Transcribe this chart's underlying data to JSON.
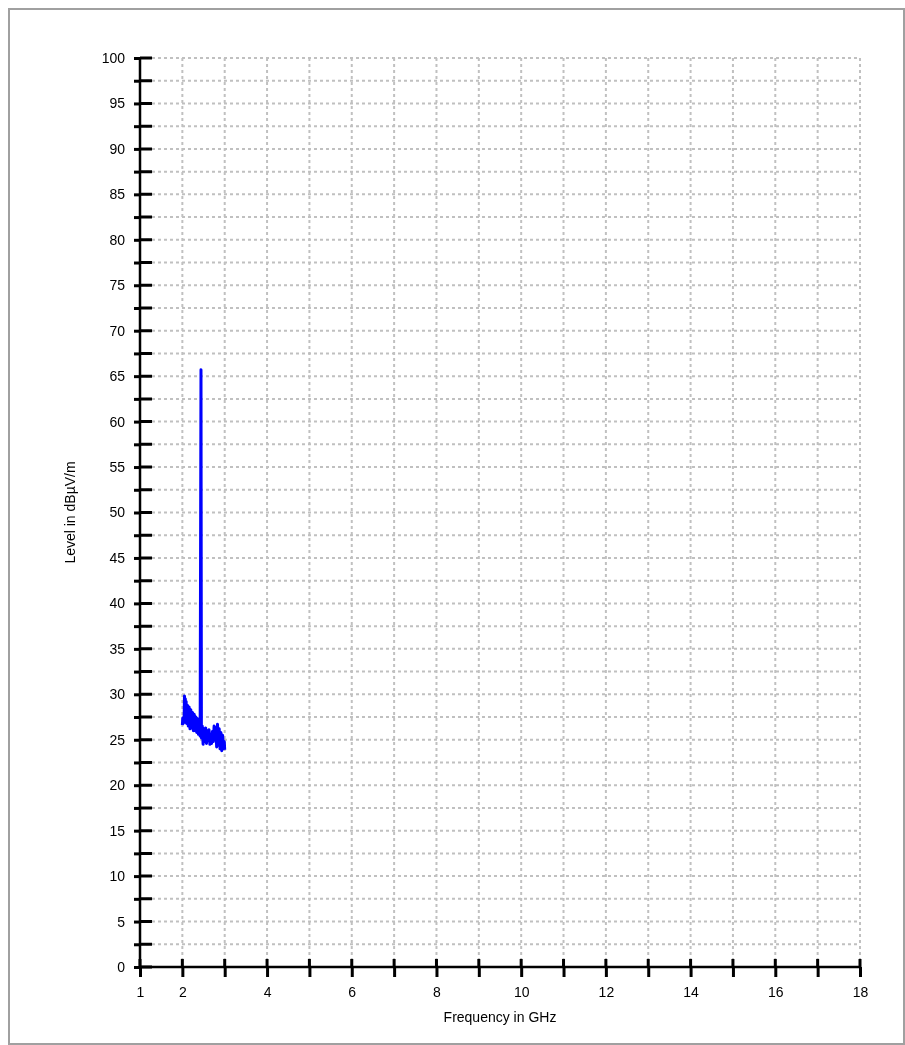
{
  "chart_data": {
    "type": "line",
    "xlabel": "Frequency in GHz",
    "ylabel": "Level in dBµV/m",
    "xlim": [
      1,
      18
    ],
    "xticks": [
      1,
      2,
      {
        "value": 3,
        "label": null
      },
      4,
      {
        "value": 5,
        "label": null
      },
      6,
      {
        "value": 7,
        "label": null
      },
      8,
      {
        "value": 9,
        "label": null
      },
      10,
      {
        "value": 11,
        "label": null
      },
      12,
      {
        "value": 13,
        "label": null
      },
      14,
      {
        "value": 15,
        "label": null
      },
      16,
      {
        "value": 17,
        "label": null
      },
      18
    ],
    "ylim": [
      0,
      100
    ],
    "yticks": [
      0,
      {
        "value": 2.5,
        "label": null
      },
      5,
      {
        "value": 7.5,
        "label": null
      },
      10,
      {
        "value": 12.5,
        "label": null
      },
      15,
      {
        "value": 17.5,
        "label": null
      },
      20,
      {
        "value": 22.5,
        "label": null
      },
      25,
      {
        "value": 27.5,
        "label": null
      },
      30,
      {
        "value": 32.5,
        "label": null
      },
      35,
      {
        "value": 37.5,
        "label": null
      },
      40,
      {
        "value": 42.5,
        "label": null
      },
      45,
      {
        "value": 47.5,
        "label": null
      },
      50,
      {
        "value": 52.5,
        "label": null
      },
      55,
      {
        "value": 57.5,
        "label": null
      },
      60,
      {
        "value": 62.5,
        "label": null
      },
      65,
      {
        "value": 67.5,
        "label": null
      },
      70,
      {
        "value": 72.5,
        "label": null
      },
      75,
      {
        "value": 77.5,
        "label": null
      },
      80,
      {
        "value": 82.5,
        "label": null
      },
      85,
      {
        "value": 87.5,
        "label": null
      },
      90,
      {
        "value": 92.5,
        "label": null
      },
      95,
      {
        "value": 97.5,
        "label": null
      },
      100
    ],
    "grid": true,
    "marker": "none",
    "line_style": "solid",
    "series": [
      {
        "color": "#0000ff",
        "x": [
          2.0,
          2.01,
          2.02,
          2.03,
          2.04,
          2.05,
          2.06,
          2.07,
          2.08,
          2.09,
          2.1,
          2.12,
          2.14,
          2.16,
          2.18,
          2.2,
          2.22,
          2.24,
          2.26,
          2.28,
          2.3,
          2.32,
          2.34,
          2.36,
          2.38,
          2.4,
          2.42,
          2.44,
          2.45,
          2.47,
          2.49,
          2.51,
          2.53,
          2.55,
          2.57,
          2.59,
          2.61,
          2.63,
          2.65,
          2.67,
          2.69,
          2.71,
          2.73,
          2.75,
          2.77,
          2.79,
          2.81,
          2.83,
          2.85,
          2.87,
          2.89,
          2.91,
          2.93,
          2.95,
          2.97,
          2.99,
          3.0
        ],
        "values": [
          26.6,
          27.4,
          26.8,
          27.3,
          26.9,
          29.8,
          27.2,
          29.5,
          27.0,
          29.2,
          26.8,
          28.8,
          26.5,
          28.6,
          26.2,
          28.3,
          26.3,
          28.0,
          26.0,
          27.8,
          26.0,
          27.5,
          25.8,
          27.3,
          25.6,
          26.8,
          25.4,
          65.7,
          25.2,
          26.5,
          24.5,
          26.2,
          24.8,
          26.3,
          24.6,
          26.0,
          24.9,
          26.1,
          24.5,
          25.6,
          24.6,
          25.9,
          24.8,
          26.5,
          25.0,
          26.3,
          24.2,
          26.7,
          24.4,
          26.2,
          24.0,
          25.8,
          23.8,
          25.5,
          24.0,
          24.8,
          23.9
        ]
      }
    ]
  }
}
